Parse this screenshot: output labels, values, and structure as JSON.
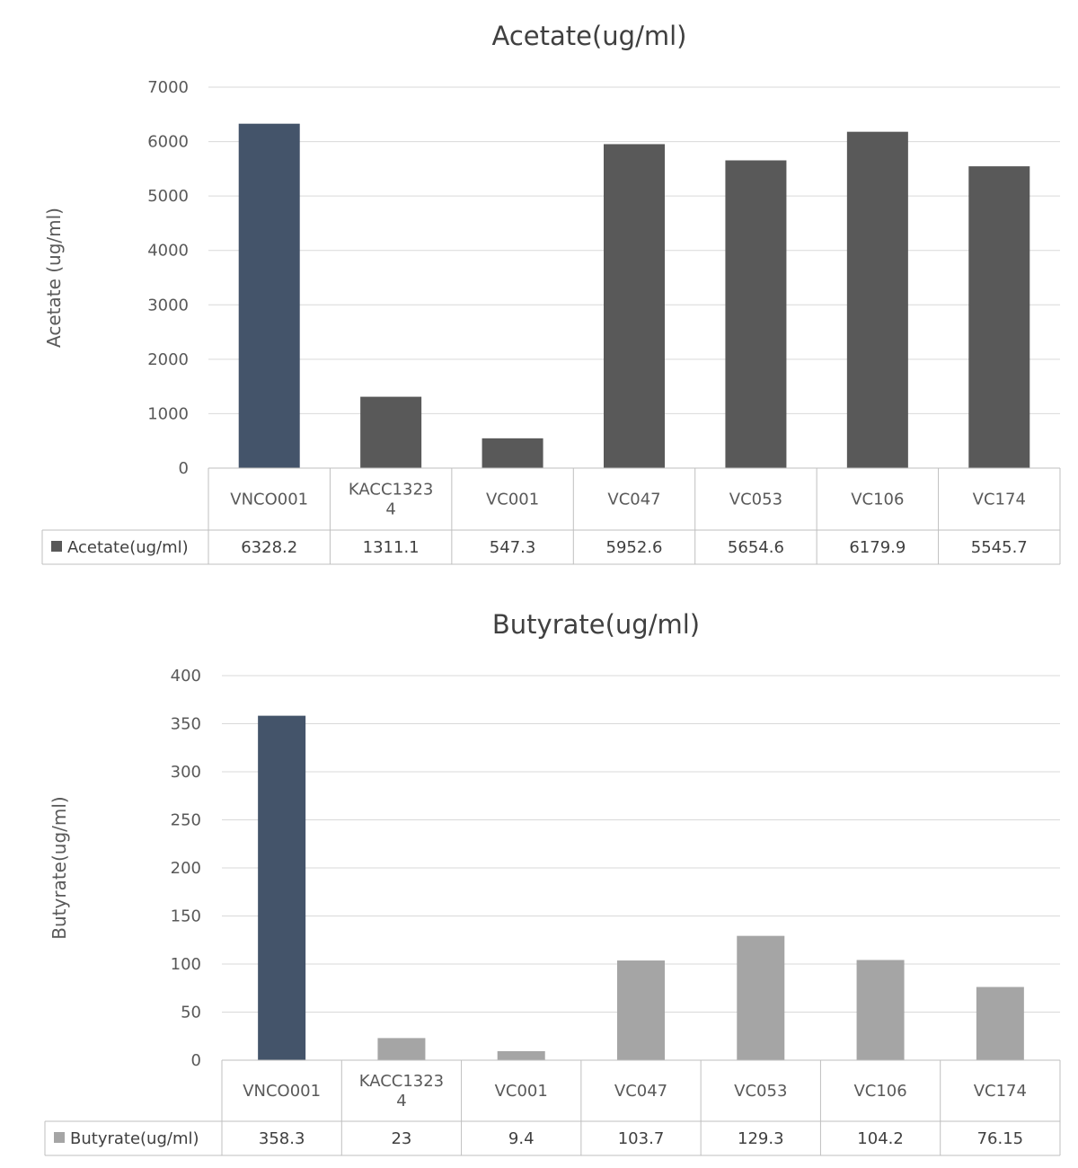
{
  "chart_data": [
    {
      "type": "bar",
      "title": "Acetate(ug/ml)",
      "ylabel": "Acetate (ug/ml)",
      "xlabel": "",
      "ylim": [
        0,
        7000
      ],
      "yticks": [
        0,
        1000,
        2000,
        3000,
        4000,
        5000,
        6000,
        7000
      ],
      "categories": [
        [
          "VNCO001"
        ],
        [
          "KACC1323",
          "4"
        ],
        [
          "VC001"
        ],
        [
          "VC047"
        ],
        [
          "VC053"
        ],
        [
          "VC106"
        ],
        [
          "VC174"
        ]
      ],
      "series": [
        {
          "name": "Acetate(ug/ml)",
          "values": [
            6328.2,
            1311.1,
            547.3,
            5952.6,
            5654.6,
            6179.9,
            5545.7
          ],
          "labels": [
            "6328.2",
            "1311.1",
            "547.3",
            "5952.6",
            "5654.6",
            "6179.9",
            "5545.7"
          ]
        }
      ],
      "highlight_index": 0,
      "colors": {
        "bar": "#595959",
        "highlight": "#44546a",
        "legend_marker": "#595959"
      },
      "grid": true,
      "data_table": true
    },
    {
      "type": "bar",
      "title": "Butyrate(ug/ml)",
      "ylabel": "Butyrate(ug/ml)",
      "xlabel": "",
      "ylim": [
        0,
        400
      ],
      "yticks": [
        0,
        50,
        100,
        150,
        200,
        250,
        300,
        350,
        400
      ],
      "categories": [
        [
          "VNCO001"
        ],
        [
          "KACC1323",
          "4"
        ],
        [
          "VC001"
        ],
        [
          "VC047"
        ],
        [
          "VC053"
        ],
        [
          "VC106"
        ],
        [
          "VC174"
        ]
      ],
      "series": [
        {
          "name": "Butyrate(ug/ml)",
          "values": [
            358.3,
            23,
            9.4,
            103.7,
            129.3,
            104.2,
            76.15
          ],
          "labels": [
            "358.3",
            "23",
            "9.4",
            "103.7",
            "129.3",
            "104.2",
            "76.15"
          ]
        }
      ],
      "highlight_index": 0,
      "colors": {
        "bar": "#a5a5a5",
        "highlight": "#44546a",
        "legend_marker": "#a5a5a5"
      },
      "grid": true,
      "data_table": true
    }
  ]
}
